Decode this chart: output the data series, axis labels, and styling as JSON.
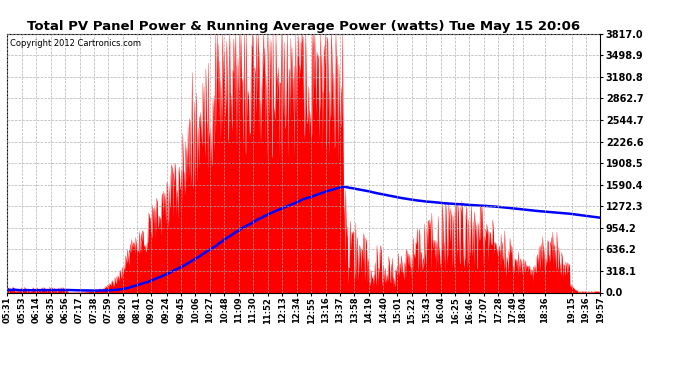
{
  "title": "Total PV Panel Power & Running Average Power (watts) Tue May 15 20:06",
  "copyright": "Copyright 2012 Cartronics.com",
  "ylabel_right": [
    "3817.0",
    "3498.9",
    "3180.8",
    "2862.7",
    "2544.7",
    "2226.6",
    "1908.5",
    "1590.4",
    "1272.3",
    "954.2",
    "636.2",
    "318.1",
    "0.0"
  ],
  "ymax": 3817.0,
  "ymin": 0.0,
  "background_color": "#ffffff",
  "plot_bg_color": "#ffffff",
  "bar_color": "#ff0000",
  "avg_line_color": "#0000ff",
  "grid_color": "#aaaaaa",
  "x_labels": [
    "05:31",
    "05:53",
    "06:14",
    "06:35",
    "06:56",
    "07:17",
    "07:38",
    "07:59",
    "08:20",
    "08:41",
    "09:02",
    "09:24",
    "09:45",
    "10:06",
    "10:27",
    "10:48",
    "11:09",
    "11:30",
    "11:52",
    "12:13",
    "12:34",
    "12:55",
    "13:16",
    "13:37",
    "13:58",
    "14:19",
    "14:40",
    "15:01",
    "15:22",
    "15:43",
    "16:04",
    "16:25",
    "16:46",
    "17:07",
    "17:28",
    "17:49",
    "18:04",
    "18:36",
    "19:15",
    "19:36",
    "19:57"
  ],
  "figsize": [
    6.9,
    3.75
  ],
  "dpi": 100,
  "seed": 12345
}
